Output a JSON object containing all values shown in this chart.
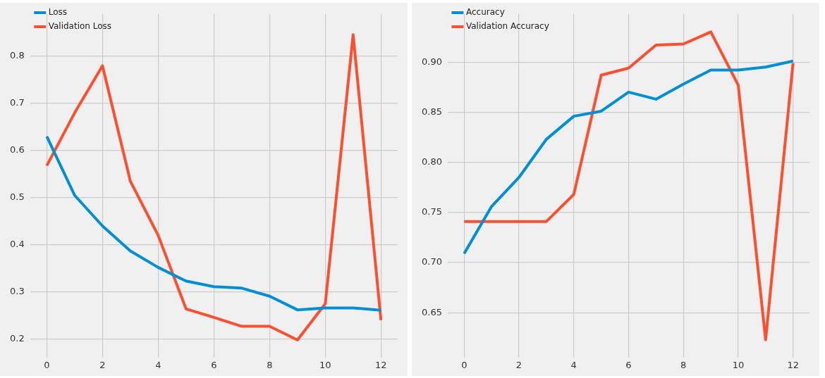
{
  "chart_data": [
    {
      "type": "line",
      "x": [
        0,
        1,
        2,
        3,
        4,
        5,
        6,
        7,
        8,
        9,
        10,
        11,
        12
      ],
      "xlim": [
        -0.6,
        12.6
      ],
      "xticks": [
        0,
        2,
        4,
        6,
        8,
        10,
        12
      ],
      "ylim": [
        0.16,
        0.89
      ],
      "yticks": [
        0.2,
        0.3,
        0.4,
        0.5,
        0.6,
        0.7,
        0.8
      ],
      "grid": true,
      "legend": "top left",
      "marker": "none",
      "series": [
        {
          "name": "Loss",
          "color": "#008fd5",
          "values": [
            0.63,
            0.505,
            0.44,
            0.387,
            0.352,
            0.323,
            0.311,
            0.308,
            0.291,
            0.262,
            0.266,
            0.266,
            0.261
          ]
        },
        {
          "name": "Validation Loss",
          "color": "#fc4f30",
          "values": [
            0.568,
            0.68,
            0.78,
            0.535,
            0.42,
            0.264,
            0.246,
            0.227,
            0.227,
            0.198,
            0.275,
            0.846,
            0.24
          ]
        }
      ]
    },
    {
      "type": "line",
      "x": [
        0,
        1,
        2,
        3,
        4,
        5,
        6,
        7,
        8,
        9,
        10,
        11,
        12
      ],
      "xlim": [
        -0.6,
        12.6
      ],
      "xticks": [
        0,
        2,
        4,
        6,
        8,
        10,
        12
      ],
      "ylim": [
        0.605,
        0.948
      ],
      "yticks": [
        {
          "value": 0.65,
          "label": "0.65"
        },
        {
          "value": 0.7,
          "label": "0.70"
        },
        {
          "value": 0.75,
          "label": "0.75"
        },
        {
          "value": 0.8,
          "label": "0.80"
        },
        {
          "value": 0.85,
          "label": "0.85"
        },
        {
          "value": 0.9,
          "label": "0.90"
        }
      ],
      "grid": true,
      "legend": "top left",
      "marker": "none",
      "series": [
        {
          "name": "Accuracy",
          "color": "#008fd5",
          "values": [
            0.709,
            0.756,
            0.785,
            0.823,
            0.846,
            0.851,
            0.87,
            0.863,
            0.878,
            0.892,
            0.892,
            0.895,
            0.901
          ]
        },
        {
          "name": "Validation Accuracy",
          "color": "#fc4f30",
          "values": [
            0.741,
            0.741,
            0.741,
            0.741,
            0.768,
            0.887,
            0.894,
            0.917,
            0.918,
            0.93,
            0.877,
            0.623,
            0.899
          ]
        }
      ]
    }
  ]
}
